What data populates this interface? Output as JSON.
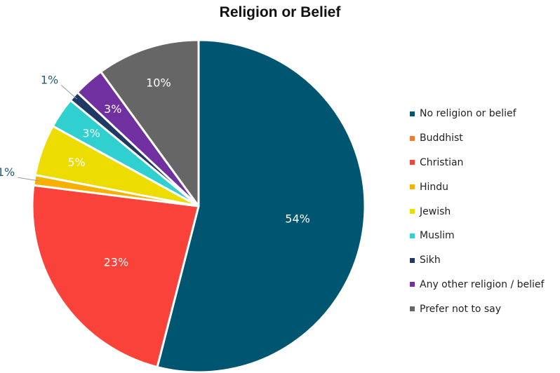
{
  "chart_data": {
    "type": "pie",
    "title": "Religion or Belief",
    "legend_position": "right",
    "categories": [
      "No religion or belief",
      "Buddhist",
      "Christian",
      "Hindu",
      "Jewish",
      "Muslim",
      "Sikh",
      "Any other religion / belief",
      "Prefer not to say"
    ],
    "values": [
      54,
      0,
      23,
      1,
      5,
      3,
      1,
      3,
      10
    ],
    "labels": [
      "54%",
      "",
      "23%",
      "1%",
      "5%",
      "3%",
      "1%",
      "3%",
      "10%"
    ],
    "colors": [
      "#005670",
      "#f47b2f",
      "#f9423a",
      "#f8b000",
      "#eddc00",
      "#2fd0cf",
      "#1f3864",
      "#7030a0",
      "#666666"
    ]
  }
}
